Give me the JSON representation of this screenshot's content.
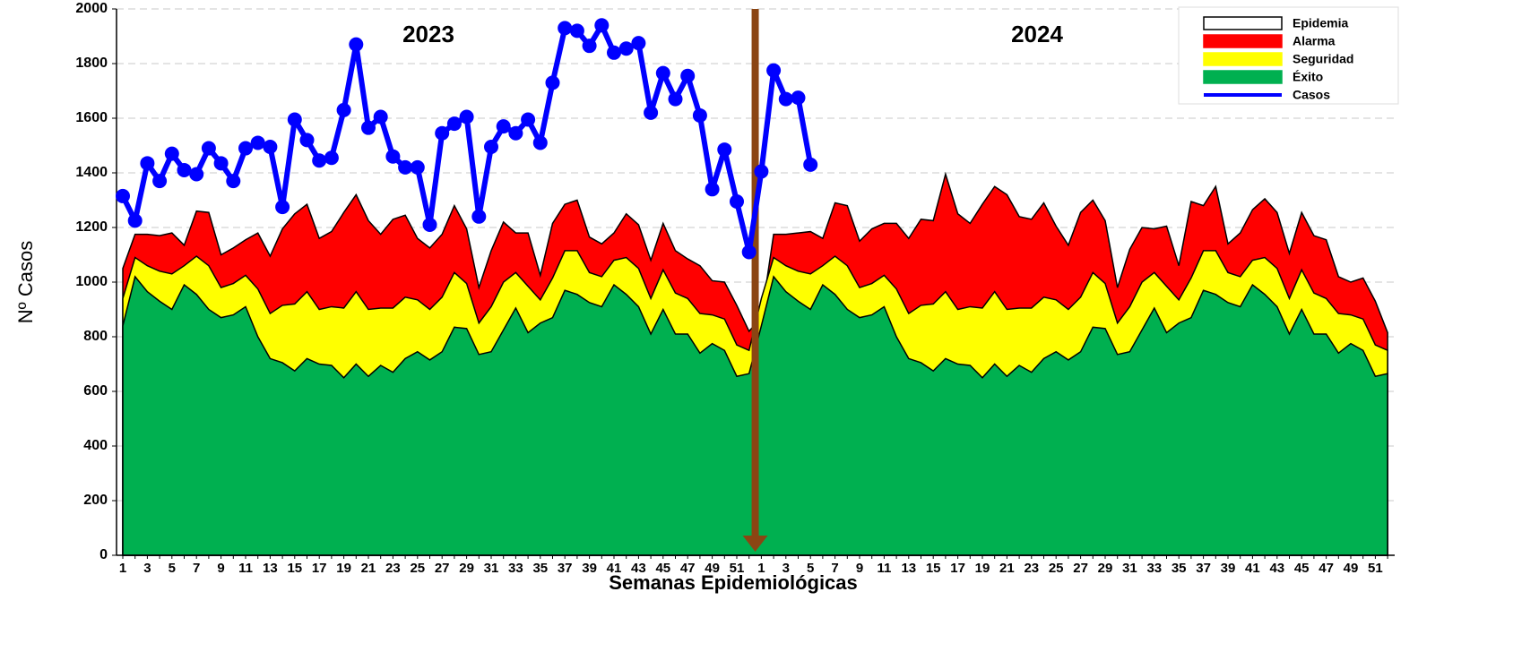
{
  "chart_data": {
    "type": "endemic-channel",
    "y_label": "Nº Casos",
    "x_label": "Semanas Epidemiológicas",
    "annotations": [
      "2023",
      "2024"
    ],
    "ylim": [
      0,
      2000
    ],
    "yticks": [
      0,
      200,
      400,
      600,
      800,
      1000,
      1200,
      1400,
      1600,
      1800,
      2000
    ],
    "grid": true,
    "categories": [
      "1",
      null,
      "3",
      null,
      "5",
      null,
      "7",
      null,
      "9",
      null,
      "11",
      null,
      "13",
      null,
      "15",
      null,
      "17",
      null,
      "19",
      null,
      "21",
      null,
      "23",
      null,
      "25",
      null,
      "27",
      null,
      "29",
      null,
      "31",
      null,
      "33",
      null,
      "35",
      null,
      "37",
      null,
      "39",
      null,
      "41",
      null,
      "43",
      null,
      "45",
      null,
      "47",
      null,
      "49",
      null,
      "51",
      null,
      "1",
      null,
      "3",
      null,
      "5",
      null,
      "7",
      null,
      "9",
      null,
      "11",
      null,
      "13",
      null,
      "15",
      null,
      "17",
      null,
      "19",
      null,
      "21",
      null,
      "23",
      null,
      "25",
      null,
      "27",
      null,
      "29",
      null,
      "31",
      null,
      "33",
      null,
      "35",
      null,
      "37",
      null,
      "39",
      null,
      "41",
      null,
      "43",
      null,
      "45",
      null,
      "47",
      null,
      "49",
      null,
      "51",
      null
    ],
    "series": [
      {
        "name": "Epidemia",
        "color": "#ffffff",
        "kind": "area"
      },
      {
        "name": "Alarma",
        "color": "#ff0000",
        "kind": "area",
        "values": [
          1050,
          1175,
          1175,
          1170,
          1180,
          1135,
          1260,
          1255,
          1100,
          1125,
          1155,
          1180,
          1095,
          1195,
          1250,
          1285,
          1160,
          1185,
          1255,
          1320,
          1225,
          1175,
          1230,
          1245,
          1160,
          1125,
          1175,
          1280,
          1195,
          980,
          1115,
          1220,
          1180,
          1180,
          1025,
          1215,
          1285,
          1300,
          1165,
          1140,
          1180,
          1250,
          1210,
          1080,
          1215,
          1115,
          1085,
          1060,
          1005,
          1000,
          915,
          820,
          870,
          1175,
          1175,
          1180,
          1185,
          1160,
          1290,
          1280,
          1150,
          1195,
          1215,
          1215,
          1160,
          1230,
          1225,
          1395,
          1250,
          1215,
          1285,
          1350,
          1320,
          1240,
          1230,
          1290,
          1205,
          1135,
          1255,
          1300,
          1225,
          980,
          1120,
          1200,
          1195,
          1205,
          1060,
          1295,
          1280,
          1350,
          1140,
          1180,
          1265,
          1305,
          1255,
          1105,
          1255,
          1170,
          1155,
          1020,
          1000,
          1015,
          930,
          815
        ]
      },
      {
        "name": "Seguridad",
        "color": "#ffff00",
        "kind": "area",
        "values": [
          940,
          1090,
          1060,
          1040,
          1030,
          1060,
          1095,
          1060,
          980,
          995,
          1025,
          975,
          885,
          915,
          920,
          965,
          900,
          910,
          905,
          965,
          900,
          905,
          905,
          945,
          935,
          900,
          945,
          1035,
          995,
          850,
          910,
          1000,
          1035,
          985,
          935,
          1015,
          1115,
          1115,
          1035,
          1020,
          1080,
          1090,
          1050,
          940,
          1045,
          960,
          940,
          885,
          880,
          865,
          770,
          750,
          940,
          1090,
          1060,
          1040,
          1030,
          1060,
          1095,
          1060,
          980,
          995,
          1025,
          975,
          885,
          915,
          920,
          965,
          900,
          910,
          905,
          965,
          900,
          905,
          905,
          945,
          935,
          900,
          945,
          1035,
          995,
          850,
          910,
          1000,
          1035,
          985,
          935,
          1015,
          1115,
          1115,
          1035,
          1020,
          1080,
          1090,
          1050,
          940,
          1045,
          960,
          940,
          885,
          880,
          865,
          770,
          750
        ]
      },
      {
        "name": "Éxito",
        "color": "#00b050",
        "kind": "area",
        "values": [
          840,
          1020,
          965,
          930,
          900,
          990,
          955,
          900,
          870,
          880,
          910,
          800,
          720,
          705,
          675,
          720,
          700,
          695,
          650,
          700,
          655,
          695,
          670,
          720,
          745,
          715,
          745,
          835,
          830,
          735,
          745,
          825,
          905,
          815,
          850,
          870,
          970,
          955,
          925,
          910,
          990,
          955,
          910,
          810,
          900,
          810,
          810,
          740,
          775,
          750,
          655,
          665,
          840,
          1020,
          965,
          930,
          900,
          990,
          955,
          900,
          870,
          880,
          910,
          800,
          720,
          705,
          675,
          720,
          700,
          695,
          650,
          700,
          655,
          695,
          670,
          720,
          745,
          715,
          745,
          835,
          830,
          735,
          745,
          825,
          905,
          815,
          850,
          870,
          970,
          955,
          925,
          910,
          990,
          955,
          910,
          810,
          900,
          810,
          810,
          740,
          775,
          750,
          655,
          665
        ]
      },
      {
        "name": "Casos",
        "color": "#0000ff",
        "kind": "line",
        "values": [
          1315,
          1225,
          1435,
          1370,
          1470,
          1410,
          1395,
          1490,
          1435,
          1370,
          1490,
          1510,
          1495,
          1275,
          1595,
          1520,
          1445,
          1455,
          1630,
          1870,
          1565,
          1605,
          1460,
          1420,
          1420,
          1210,
          1545,
          1580,
          1605,
          1240,
          1495,
          1570,
          1545,
          1595,
          1510,
          1730,
          1930,
          1920,
          1865,
          1940,
          1840,
          1855,
          1875,
          1620,
          1765,
          1670,
          1755,
          1610,
          1340,
          1485,
          1295,
          1110,
          1405,
          1775,
          1670,
          1675,
          1430,
          null,
          null,
          null,
          null,
          null,
          null,
          null,
          null,
          null,
          null,
          null,
          null,
          null,
          null,
          null,
          null,
          null,
          null,
          null,
          null,
          null,
          null,
          null,
          null,
          null,
          null,
          null,
          null,
          null,
          null,
          null,
          null,
          null,
          null,
          null,
          null,
          null,
          null,
          null,
          null,
          null,
          null,
          null,
          null,
          null,
          null,
          null
        ]
      }
    ]
  }
}
